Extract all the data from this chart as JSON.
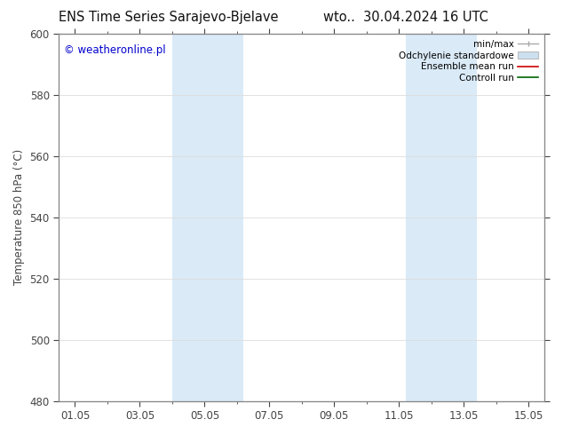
{
  "title_left": "ENS Time Series Sarajevo-Bjelave",
  "title_right": "wto..  30.04.2024 16 UTC",
  "ylabel": "Temperature 850 hPa (°C)",
  "ylim": [
    480,
    600
  ],
  "yticks": [
    480,
    500,
    520,
    540,
    560,
    580,
    600
  ],
  "xtick_labels": [
    "01.05",
    "03.05",
    "05.05",
    "07.05",
    "09.05",
    "11.05",
    "13.05",
    "15.05"
  ],
  "xtick_positions": [
    0,
    2,
    4,
    6,
    8,
    10,
    12,
    14
  ],
  "xlim": [
    -0.5,
    14.5
  ],
  "shaded_regions": [
    {
      "start": 3.0,
      "end": 5.2,
      "color": "#daeaf7"
    },
    {
      "start": 10.2,
      "end": 12.4,
      "color": "#daeaf7"
    }
  ],
  "watermark_text": "© weatheronline.pl",
  "watermark_color": "#0000cc",
  "legend_items": [
    {
      "label": "min/max",
      "type": "errorbar",
      "color": "#aaaaaa",
      "lw": 1.0
    },
    {
      "label": "Odchylenie standardowe",
      "type": "patch",
      "color": "#cce0f0",
      "edgecolor": "#bbbbbb"
    },
    {
      "label": "Ensemble mean run",
      "type": "line",
      "color": "#cc0000",
      "lw": 1.2
    },
    {
      "label": "Controll run",
      "type": "line",
      "color": "#006600",
      "lw": 1.2
    }
  ],
  "bg_color": "#ffffff",
  "plot_bg_color": "#ffffff",
  "spine_color": "#888888",
  "tick_color": "#444444",
  "grid_color": "#dddddd",
  "title_fontsize": 10.5,
  "label_fontsize": 8.5,
  "tick_fontsize": 8.5,
  "legend_fontsize": 7.5
}
